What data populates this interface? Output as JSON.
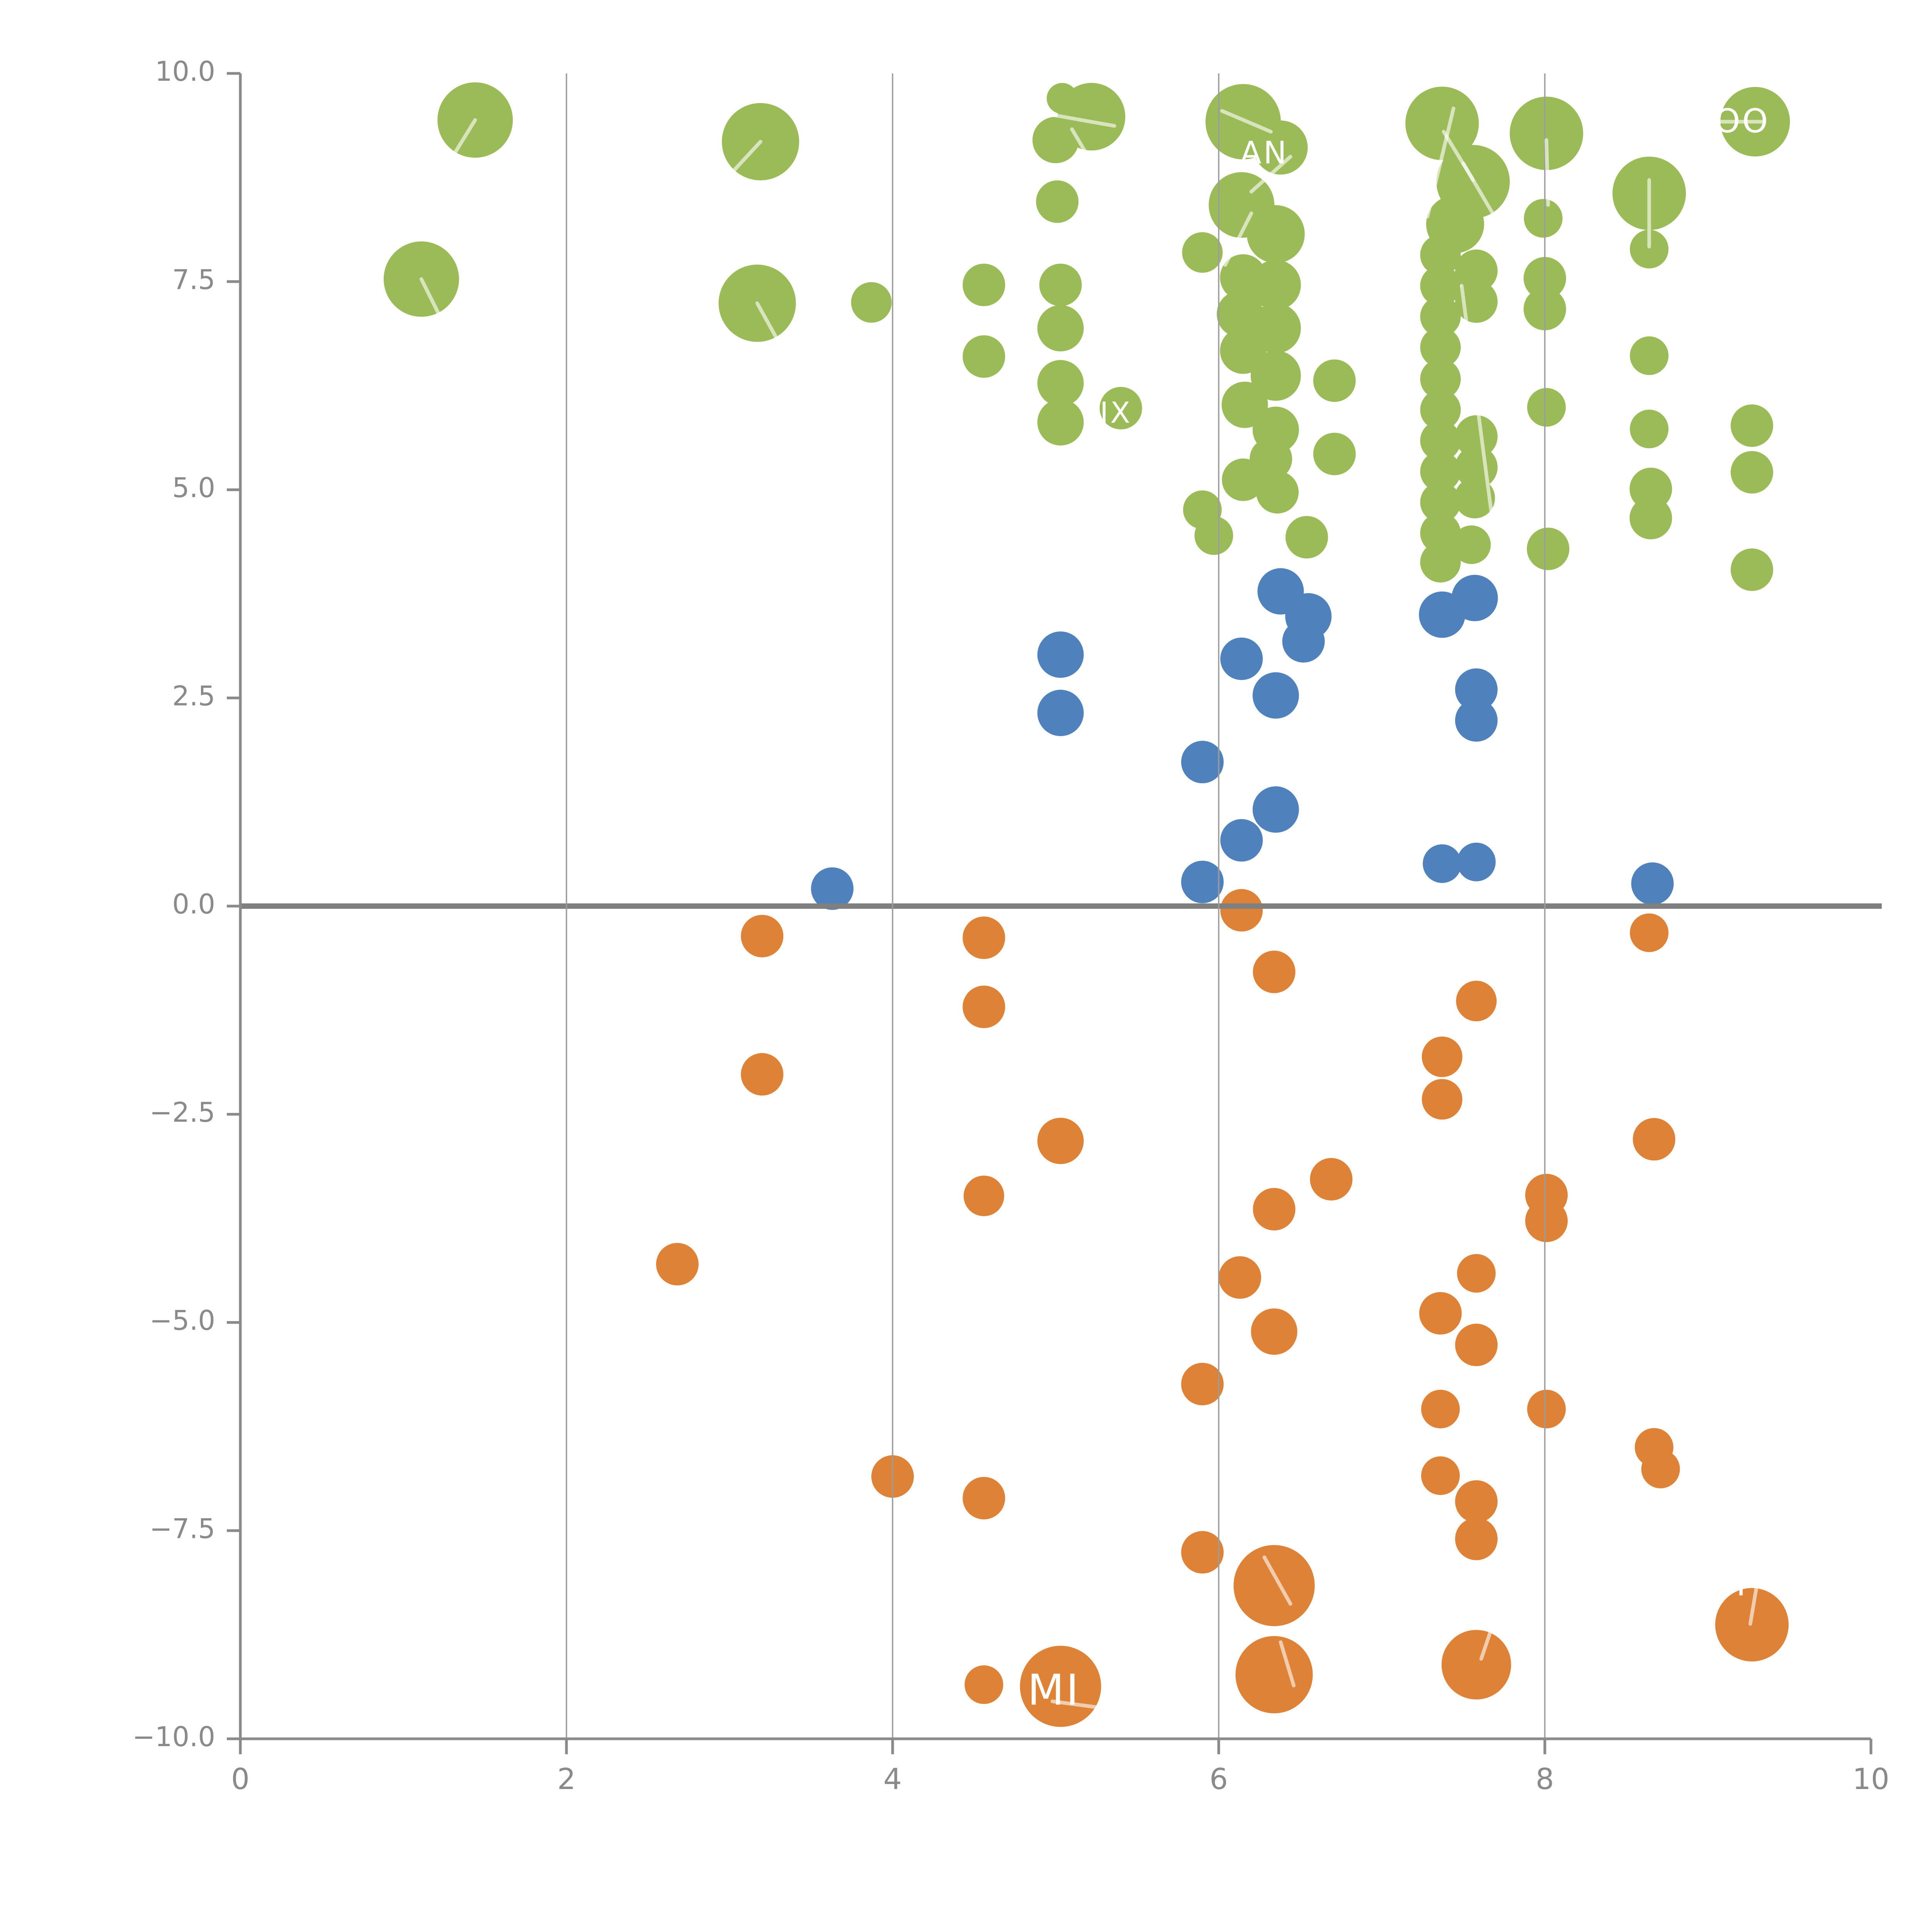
{
  "figure": {
    "background": "#ffffff",
    "axis_color": "#8a8a8a",
    "grid_color": "#9c9c9c",
    "zero_line_color": "#7f7f7f",
    "leader_line_color": "#ffffff",
    "annotation_color": "#ffffff"
  },
  "chart_data": {
    "type": "scatter",
    "title": "",
    "xlabel": "",
    "ylabel": "",
    "xlim": [
      0,
      10
    ],
    "ylim": [
      -10,
      10
    ],
    "grid": "vertical-only",
    "legend": "none",
    "x_ticks": {
      "values": [
        0,
        2,
        4,
        6,
        8,
        10
      ],
      "labels": [
        "0",
        "2",
        "4",
        "6",
        "8",
        "10"
      ]
    },
    "y_ticks": {
      "values": [
        10,
        7.5,
        5,
        2.5,
        0,
        -2.5,
        -5,
        -7.5,
        -10
      ],
      "labels": [
        "10.0",
        "7.5",
        "5.0",
        "2.5",
        "0.0",
        "−2.5",
        "−5.0",
        "−7.5",
        "−10.0"
      ]
    },
    "vertical_gridlines_x": [
      2,
      4,
      6,
      8
    ],
    "zero_line_y": 0,
    "series": [
      {
        "name": "green",
        "color": "#9BBB59",
        "points": [
          {
            "x": 1.44,
            "y": 9.44,
            "r": 19.5
          },
          {
            "x": 1.11,
            "y": 7.53,
            "r": 19.5
          },
          {
            "x": 3.19,
            "y": 9.18,
            "r": 20
          },
          {
            "x": 3.17,
            "y": 7.24,
            "r": 20
          },
          {
            "x": 3.87,
            "y": 7.25,
            "r": 10.5
          },
          {
            "x": 4.56,
            "y": 7.46,
            "r": 11
          },
          {
            "x": 4.56,
            "y": 6.6,
            "r": 11
          },
          {
            "x": 5.04,
            "y": 9.7,
            "r": 8
          },
          {
            "x": 5.22,
            "y": 9.48,
            "r": 17.5
          },
          {
            "x": 5.0,
            "y": 9.2,
            "r": 12
          },
          {
            "x": 5.01,
            "y": 8.46,
            "r": 11
          },
          {
            "x": 5.03,
            "y": 7.46,
            "r": 11
          },
          {
            "x": 5.03,
            "y": 6.94,
            "r": 12
          },
          {
            "x": 5.03,
            "y": 6.28,
            "r": 12
          },
          {
            "x": 5.03,
            "y": 5.81,
            "r": 12
          },
          {
            "x": 5.4,
            "y": 5.98,
            "r": 11
          },
          {
            "x": 5.9,
            "y": 4.76,
            "r": 10
          },
          {
            "x": 5.97,
            "y": 4.45,
            "r": 10
          },
          {
            "x": 6.15,
            "y": 9.42,
            "r": 19.5
          },
          {
            "x": 6.38,
            "y": 9.11,
            "r": 14
          },
          {
            "x": 6.14,
            "y": 8.42,
            "r": 17
          },
          {
            "x": 6.35,
            "y": 8.07,
            "r": 15
          },
          {
            "x": 5.9,
            "y": 7.85,
            "r": 10.5
          },
          {
            "x": 6.15,
            "y": 7.55,
            "r": 12
          },
          {
            "x": 6.35,
            "y": 7.46,
            "r": 13
          },
          {
            "x": 6.13,
            "y": 7.11,
            "r": 12
          },
          {
            "x": 6.35,
            "y": 6.94,
            "r": 13
          },
          {
            "x": 6.15,
            "y": 6.67,
            "r": 12
          },
          {
            "x": 6.35,
            "y": 6.37,
            "r": 13
          },
          {
            "x": 6.16,
            "y": 6.02,
            "r": 12
          },
          {
            "x": 6.35,
            "y": 5.72,
            "r": 12
          },
          {
            "x": 6.32,
            "y": 5.37,
            "r": 11
          },
          {
            "x": 6.15,
            "y": 5.12,
            "r": 11
          },
          {
            "x": 6.36,
            "y": 4.97,
            "r": 11
          },
          {
            "x": 6.71,
            "y": 6.31,
            "r": 11
          },
          {
            "x": 6.71,
            "y": 5.43,
            "r": 11
          },
          {
            "x": 6.54,
            "y": 4.43,
            "r": 11
          },
          {
            "x": 7.37,
            "y": 9.4,
            "r": 19
          },
          {
            "x": 7.56,
            "y": 8.7,
            "r": 19
          },
          {
            "x": 7.45,
            "y": 8.19,
            "r": 15
          },
          {
            "x": 7.36,
            "y": 7.82,
            "r": 10.5
          },
          {
            "x": 7.36,
            "y": 7.45,
            "r": 10.5
          },
          {
            "x": 7.36,
            "y": 7.08,
            "r": 10.5
          },
          {
            "x": 7.36,
            "y": 6.71,
            "r": 10.5
          },
          {
            "x": 7.36,
            "y": 6.33,
            "r": 10.5
          },
          {
            "x": 7.36,
            "y": 5.96,
            "r": 10.5
          },
          {
            "x": 7.36,
            "y": 5.59,
            "r": 10.5
          },
          {
            "x": 7.36,
            "y": 5.22,
            "r": 10.5
          },
          {
            "x": 7.36,
            "y": 4.85,
            "r": 10.5
          },
          {
            "x": 7.36,
            "y": 4.48,
            "r": 10.5
          },
          {
            "x": 7.36,
            "y": 4.13,
            "r": 10.5
          },
          {
            "x": 7.58,
            "y": 7.63,
            "r": 11
          },
          {
            "x": 7.58,
            "y": 7.26,
            "r": 11
          },
          {
            "x": 7.58,
            "y": 5.64,
            "r": 11
          },
          {
            "x": 7.58,
            "y": 5.27,
            "r": 11
          },
          {
            "x": 7.57,
            "y": 4.9,
            "r": 10.5
          },
          {
            "x": 7.55,
            "y": 4.34,
            "r": 10
          },
          {
            "x": 8.01,
            "y": 9.28,
            "r": 19
          },
          {
            "x": 7.99,
            "y": 8.26,
            "r": 10
          },
          {
            "x": 8.0,
            "y": 7.54,
            "r": 11
          },
          {
            "x": 8.0,
            "y": 7.17,
            "r": 11
          },
          {
            "x": 8.01,
            "y": 5.99,
            "r": 10
          },
          {
            "x": 8.02,
            "y": 4.29,
            "r": 11
          },
          {
            "x": 8.64,
            "y": 8.56,
            "r": 19
          },
          {
            "x": 8.64,
            "y": 7.89,
            "r": 10
          },
          {
            "x": 8.64,
            "y": 6.61,
            "r": 10
          },
          {
            "x": 8.64,
            "y": 5.73,
            "r": 10
          },
          {
            "x": 8.65,
            "y": 5.01,
            "r": 11
          },
          {
            "x": 8.65,
            "y": 4.66,
            "r": 11
          },
          {
            "x": 9.29,
            "y": 9.42,
            "r": 18
          },
          {
            "x": 9.27,
            "y": 5.77,
            "r": 11
          },
          {
            "x": 9.27,
            "y": 5.21,
            "r": 11
          },
          {
            "x": 9.27,
            "y": 4.04,
            "r": 11
          }
        ]
      },
      {
        "name": "blue",
        "color": "#4F81BD",
        "points": [
          {
            "x": 3.63,
            "y": 0.21,
            "r": 11
          },
          {
            "x": 5.03,
            "y": 3.02,
            "r": 12
          },
          {
            "x": 5.03,
            "y": 2.32,
            "r": 12
          },
          {
            "x": 5.9,
            "y": 1.73,
            "r": 11
          },
          {
            "x": 5.9,
            "y": 0.29,
            "r": 11
          },
          {
            "x": 6.14,
            "y": 2.97,
            "r": 11
          },
          {
            "x": 6.35,
            "y": 2.53,
            "r": 12
          },
          {
            "x": 6.35,
            "y": 1.16,
            "r": 12
          },
          {
            "x": 6.14,
            "y": 0.79,
            "r": 11
          },
          {
            "x": 6.38,
            "y": 3.78,
            "r": 12
          },
          {
            "x": 6.55,
            "y": 3.48,
            "r": 12
          },
          {
            "x": 6.52,
            "y": 3.18,
            "r": 11
          },
          {
            "x": 7.37,
            "y": 3.5,
            "r": 12
          },
          {
            "x": 7.57,
            "y": 3.7,
            "r": 12
          },
          {
            "x": 7.58,
            "y": 2.6,
            "r": 11
          },
          {
            "x": 7.58,
            "y": 2.23,
            "r": 11
          },
          {
            "x": 7.37,
            "y": 0.51,
            "r": 10
          },
          {
            "x": 7.58,
            "y": 0.53,
            "r": 10
          },
          {
            "x": 8.66,
            "y": 0.27,
            "r": 11
          }
        ]
      },
      {
        "name": "orange",
        "color": "#DD8236",
        "points": [
          {
            "x": 2.68,
            "y": -4.3,
            "r": 11
          },
          {
            "x": 3.2,
            "y": -0.36,
            "r": 11
          },
          {
            "x": 3.2,
            "y": -2.02,
            "r": 11
          },
          {
            "x": 4.0,
            "y": -6.85,
            "r": 11
          },
          {
            "x": 4.56,
            "y": -0.38,
            "r": 11
          },
          {
            "x": 4.56,
            "y": -1.21,
            "r": 11
          },
          {
            "x": 4.56,
            "y": -3.48,
            "r": 10.5
          },
          {
            "x": 4.56,
            "y": -7.11,
            "r": 11
          },
          {
            "x": 4.56,
            "y": -9.35,
            "r": 10
          },
          {
            "x": 5.03,
            "y": -2.82,
            "r": 12
          },
          {
            "x": 5.03,
            "y": -9.37,
            "r": 21
          },
          {
            "x": 5.9,
            "y": -5.74,
            "r": 11
          },
          {
            "x": 5.9,
            "y": -7.76,
            "r": 11
          },
          {
            "x": 6.13,
            "y": -4.46,
            "r": 11
          },
          {
            "x": 6.14,
            "y": -0.05,
            "r": 11
          },
          {
            "x": 6.34,
            "y": -0.79,
            "r": 11
          },
          {
            "x": 6.34,
            "y": -3.64,
            "r": 11
          },
          {
            "x": 6.34,
            "y": -5.11,
            "r": 12
          },
          {
            "x": 6.34,
            "y": -8.16,
            "r": 21
          },
          {
            "x": 6.34,
            "y": -9.23,
            "r": 20
          },
          {
            "x": 6.69,
            "y": -3.28,
            "r": 11
          },
          {
            "x": 7.36,
            "y": -4.89,
            "r": 11
          },
          {
            "x": 7.36,
            "y": -6.04,
            "r": 10
          },
          {
            "x": 7.36,
            "y": -6.84,
            "r": 10
          },
          {
            "x": 7.37,
            "y": -1.81,
            "r": 10.5
          },
          {
            "x": 7.37,
            "y": -2.32,
            "r": 10.5
          },
          {
            "x": 7.58,
            "y": -1.14,
            "r": 10.5
          },
          {
            "x": 7.58,
            "y": -4.41,
            "r": 10
          },
          {
            "x": 7.58,
            "y": -5.27,
            "r": 11
          },
          {
            "x": 7.58,
            "y": -7.15,
            "r": 11
          },
          {
            "x": 7.58,
            "y": -7.6,
            "r": 11
          },
          {
            "x": 7.58,
            "y": -9.11,
            "r": 18
          },
          {
            "x": 8.01,
            "y": -3.47,
            "r": 11
          },
          {
            "x": 8.01,
            "y": -3.78,
            "r": 11
          },
          {
            "x": 8.01,
            "y": -6.04,
            "r": 10
          },
          {
            "x": 8.64,
            "y": -0.32,
            "r": 10
          },
          {
            "x": 8.67,
            "y": -2.8,
            "r": 11
          },
          {
            "x": 8.67,
            "y": -6.5,
            "r": 10
          },
          {
            "x": 8.71,
            "y": -6.76,
            "r": 10
          },
          {
            "x": 9.27,
            "y": -8.63,
            "r": 19
          }
        ]
      }
    ],
    "annotations": [
      {
        "text": "AN",
        "x": 6.28,
        "y": 9.02,
        "size": 16
      },
      {
        "text": "OO",
        "x": 9.21,
        "y": 9.4,
        "size": 17
      },
      {
        "text": "IX",
        "x": 5.37,
        "y": 5.9,
        "size": 15
      },
      {
        "text": "MI",
        "x": 4.99,
        "y": -9.45,
        "size": 22
      },
      {
        "text": "SP",
        "x": 9.17,
        "y": -8.17,
        "size": 17
      },
      {
        "text": "–",
        "x": 7.93,
        "y": 1.55,
        "size": 9
      }
    ],
    "leader_lines": [
      {
        "x1": 1.44,
        "y1": 9.44,
        "x2": 1.32,
        "y2": 9.06
      },
      {
        "x1": 1.11,
        "y1": 7.53,
        "x2": 1.24,
        "y2": 7.02
      },
      {
        "x1": 3.19,
        "y1": 9.18,
        "x2": 3.02,
        "y2": 8.82
      },
      {
        "x1": 3.17,
        "y1": 7.24,
        "x2": 3.3,
        "y2": 6.78
      },
      {
        "x1": 4.9,
        "y1": 9.53,
        "x2": 5.36,
        "y2": 9.37
      },
      {
        "x1": 5.1,
        "y1": 9.33,
        "x2": 5.26,
        "y2": 8.8
      },
      {
        "x1": 6.02,
        "y1": 9.55,
        "x2": 6.32,
        "y2": 9.3
      },
      {
        "x1": 6.2,
        "y1": 8.58,
        "x2": 6.44,
        "y2": 9.0
      },
      {
        "x1": 6.2,
        "y1": 8.32,
        "x2": 6.04,
        "y2": 7.7
      },
      {
        "x1": 7.44,
        "y1": 9.58,
        "x2": 7.28,
        "y2": 8.28
      },
      {
        "x1": 7.38,
        "y1": 9.3,
        "x2": 7.56,
        "y2": 8.72
      },
      {
        "x1": 7.5,
        "y1": 8.92,
        "x2": 7.74,
        "y2": 8.12
      },
      {
        "x1": 7.49,
        "y1": 7.45,
        "x2": 7.68,
        "y2": 4.61
      },
      {
        "x1": 8.01,
        "y1": 9.2,
        "x2": 8.02,
        "y2": 8.42
      },
      {
        "x1": 8.64,
        "y1": 8.72,
        "x2": 8.64,
        "y2": 7.92
      },
      {
        "x1": 9.04,
        "y1": 9.42,
        "x2": 9.33,
        "y2": 9.42
      },
      {
        "x1": 4.98,
        "y1": -9.55,
        "x2": 5.25,
        "y2": -9.62
      },
      {
        "x1": 6.28,
        "y1": -7.82,
        "x2": 6.44,
        "y2": -8.38
      },
      {
        "x1": 6.38,
        "y1": -8.84,
        "x2": 6.46,
        "y2": -9.36
      },
      {
        "x1": 7.7,
        "y1": -8.52,
        "x2": 7.61,
        "y2": -9.04
      },
      {
        "x1": 9.31,
        "y1": -8.04,
        "x2": 9.26,
        "y2": -8.62
      }
    ]
  }
}
